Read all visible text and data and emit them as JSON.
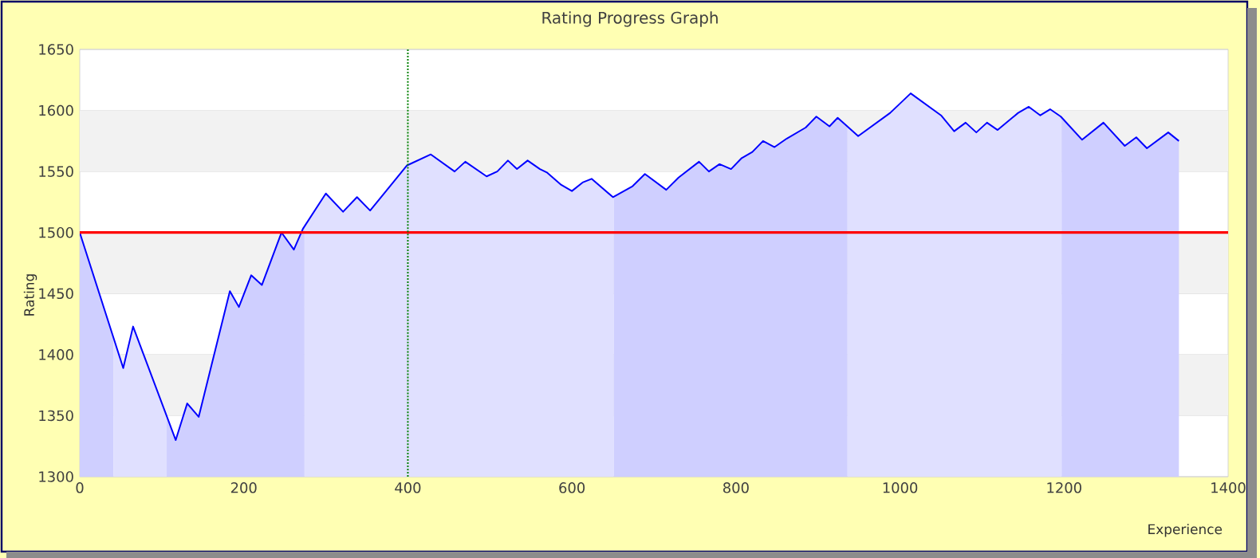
{
  "chart_data": {
    "type": "line",
    "title": "Rating Progress Graph",
    "xlabel": "Experience",
    "ylabel": "Rating",
    "xlim": [
      0,
      1400
    ],
    "ylim": [
      1300,
      1650
    ],
    "xticks": [
      0,
      200,
      400,
      600,
      800,
      1000,
      1200,
      1400
    ],
    "yticks": [
      1300,
      1350,
      1400,
      1450,
      1500,
      1550,
      1600,
      1650
    ],
    "grid": "y",
    "bands": [
      {
        "axis": "y",
        "from": 1350,
        "to": 1400,
        "color": "#f2f2f2"
      },
      {
        "axis": "y",
        "from": 1450,
        "to": 1500,
        "color": "#f2f2f2"
      },
      {
        "axis": "y",
        "from": 1550,
        "to": 1600,
        "color": "#f2f2f2"
      }
    ],
    "series": [
      {
        "type": "area",
        "color": "#cfcfff",
        "x": [
          0,
          41
        ],
        "values": [
          1500,
          1414
        ]
      },
      {
        "type": "area",
        "color": "#e0e0ff",
        "x": [
          41,
          53,
          65,
          106
        ],
        "values": [
          1414,
          1389,
          1423,
          1350
        ]
      },
      {
        "type": "area",
        "color": "#cfcfff",
        "x": [
          106,
          117,
          131,
          145,
          183,
          194,
          209,
          222,
          246,
          261,
          274
        ],
        "values": [
          1350,
          1330,
          1360,
          1349,
          1452,
          1439,
          1465,
          1457,
          1500,
          1486,
          1505
        ]
      },
      {
        "type": "area",
        "color": "#e0e0ff",
        "x": [
          274,
          300,
          321,
          338,
          354,
          399,
          428,
          457,
          470,
          496,
          509,
          522,
          533,
          546,
          561,
          570,
          587,
          600,
          613,
          624,
          651
        ],
        "values": [
          1505,
          1532,
          1517,
          1529,
          1518,
          1555,
          1564,
          1550,
          1558,
          1546,
          1550,
          1559,
          1552,
          1559,
          1552,
          1549,
          1539,
          1534,
          1541,
          1544,
          1529
        ]
      },
      {
        "type": "area",
        "color": "#cfcfff",
        "x": [
          651,
          674,
          689,
          715,
          730,
          755,
          767,
          780,
          794,
          807,
          820,
          833,
          847,
          862,
          885,
          898,
          914,
          924,
          936
        ],
        "values": [
          1529,
          1538,
          1548,
          1535,
          1545,
          1558,
          1550,
          1556,
          1552,
          1561,
          1566,
          1575,
          1570,
          1577,
          1586,
          1595,
          1587,
          1594,
          1586
        ]
      },
      {
        "type": "area",
        "color": "#e0e0ff",
        "x": [
          936,
          949,
          988,
          1013,
          1050,
          1066,
          1080,
          1093,
          1106,
          1119,
          1144,
          1157,
          1171,
          1183,
          1197
        ],
        "values": [
          1586,
          1579,
          1598,
          1614,
          1596,
          1583,
          1590,
          1582,
          1590,
          1584,
          1598,
          1603,
          1596,
          1601,
          1595
        ]
      },
      {
        "type": "area",
        "color": "#cfcfff",
        "x": [
          1197,
          1222,
          1248,
          1274,
          1288,
          1301,
          1327,
          1340
        ],
        "values": [
          1595,
          1576,
          1590,
          1571,
          1578,
          1569,
          1582,
          1575
        ]
      },
      {
        "color": "#0000ff",
        "x": [
          0,
          53,
          65,
          117,
          131,
          145,
          183,
          194,
          209,
          222,
          246,
          261,
          272,
          300,
          321,
          338,
          354,
          399,
          428,
          457,
          470,
          496,
          509,
          522,
          533,
          546,
          561,
          570,
          587,
          600,
          613,
          624,
          650,
          674,
          689,
          715,
          730,
          755,
          767,
          780,
          794,
          807,
          820,
          833,
          847,
          862,
          885,
          898,
          914,
          924,
          949,
          988,
          1013,
          1050,
          1066,
          1080,
          1093,
          1106,
          1119,
          1144,
          1157,
          1171,
          1183,
          1196,
          1222,
          1248,
          1274,
          1288,
          1301,
          1327,
          1340
        ],
        "values": [
          1500,
          1389,
          1423,
          1330,
          1360,
          1349,
          1452,
          1439,
          1465,
          1457,
          1500,
          1486,
          1503,
          1532,
          1517,
          1529,
          1518,
          1555,
          1564,
          1550,
          1558,
          1546,
          1550,
          1559,
          1552,
          1559,
          1552,
          1549,
          1539,
          1534,
          1541,
          1544,
          1529,
          1538,
          1548,
          1535,
          1545,
          1558,
          1550,
          1556,
          1552,
          1561,
          1566,
          1575,
          1570,
          1577,
          1586,
          1595,
          1587,
          1594,
          1579,
          1598,
          1614,
          1596,
          1583,
          1590,
          1582,
          1590,
          1584,
          1598,
          1603,
          1596,
          1601,
          1595,
          1576,
          1590,
          1571,
          1578,
          1569,
          1582,
          1575
        ]
      }
    ],
    "ref_lines": [
      {
        "axis": "y",
        "value": 1500,
        "color": "#ff0000",
        "line_style": "solid"
      },
      {
        "axis": "x",
        "value": 400,
        "color": "#008000",
        "line_style": "dotted"
      }
    ]
  }
}
